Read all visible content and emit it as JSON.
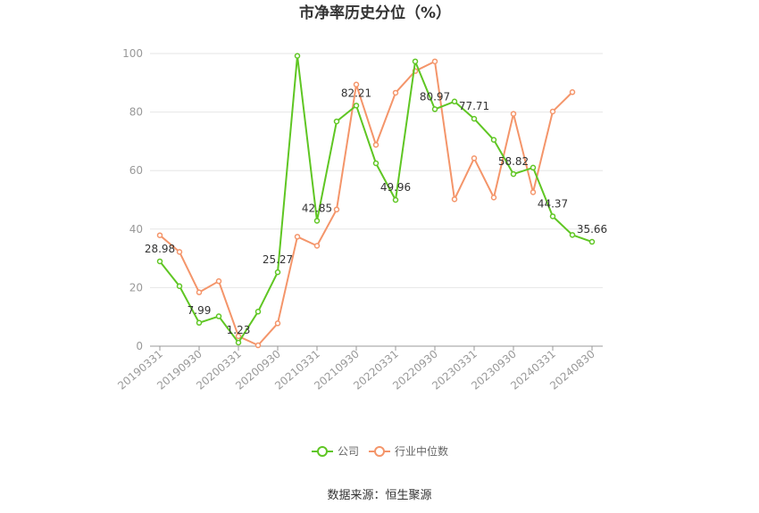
{
  "chart_data": {
    "type": "line",
    "title": "市净率历史分位（%）",
    "source": "数据来源：恒生聚源",
    "ylim": [
      0,
      100
    ],
    "yticks": [
      0,
      20,
      40,
      60,
      80,
      100
    ],
    "grid": true,
    "legend_position": "bottom",
    "x": [
      "20190331",
      "20190630",
      "20190930",
      "20191231",
      "20200331",
      "20200630",
      "20200930",
      "20201231",
      "20210331",
      "20210630",
      "20210930",
      "20211231",
      "20220331",
      "20220630",
      "20220930",
      "20221231",
      "20230331",
      "20230630",
      "20230930",
      "20231231",
      "20240331",
      "20240630",
      "20240830"
    ],
    "x_tick_labels": [
      "20190331",
      "20190930",
      "20200331",
      "20200930",
      "20210331",
      "20210930",
      "20220331",
      "20220930",
      "20230331",
      "20230930",
      "20240331",
      "20240830"
    ],
    "series": [
      {
        "name": "公司",
        "color": "#5fc623",
        "values": [
          28.98,
          20.5,
          7.99,
          10.2,
          1.23,
          11.8,
          25.27,
          99.2,
          42.85,
          76.8,
          82.21,
          62.5,
          49.96,
          97.3,
          80.97,
          83.6,
          77.71,
          70.5,
          58.82,
          61.0,
          44.37,
          38.0,
          35.66
        ],
        "labels": {
          "0": "28.98",
          "2": "7.99",
          "4": "1.23",
          "6": "25.27",
          "8": "42.85",
          "10": "82.21",
          "12": "49.96",
          "14": "80.97",
          "16": "77.71",
          "18": "58.82",
          "20": "44.37",
          "22": "35.66"
        }
      },
      {
        "name": "行业中位数",
        "color": "#f4956a",
        "values": [
          37.9,
          32.2,
          18.4,
          22.2,
          3.4,
          0.3,
          7.8,
          37.4,
          34.3,
          46.7,
          89.4,
          68.8,
          86.6,
          94.0,
          97.3,
          50.2,
          64.2,
          50.8,
          79.4,
          52.6,
          80.2,
          86.8,
          null
        ]
      }
    ]
  }
}
